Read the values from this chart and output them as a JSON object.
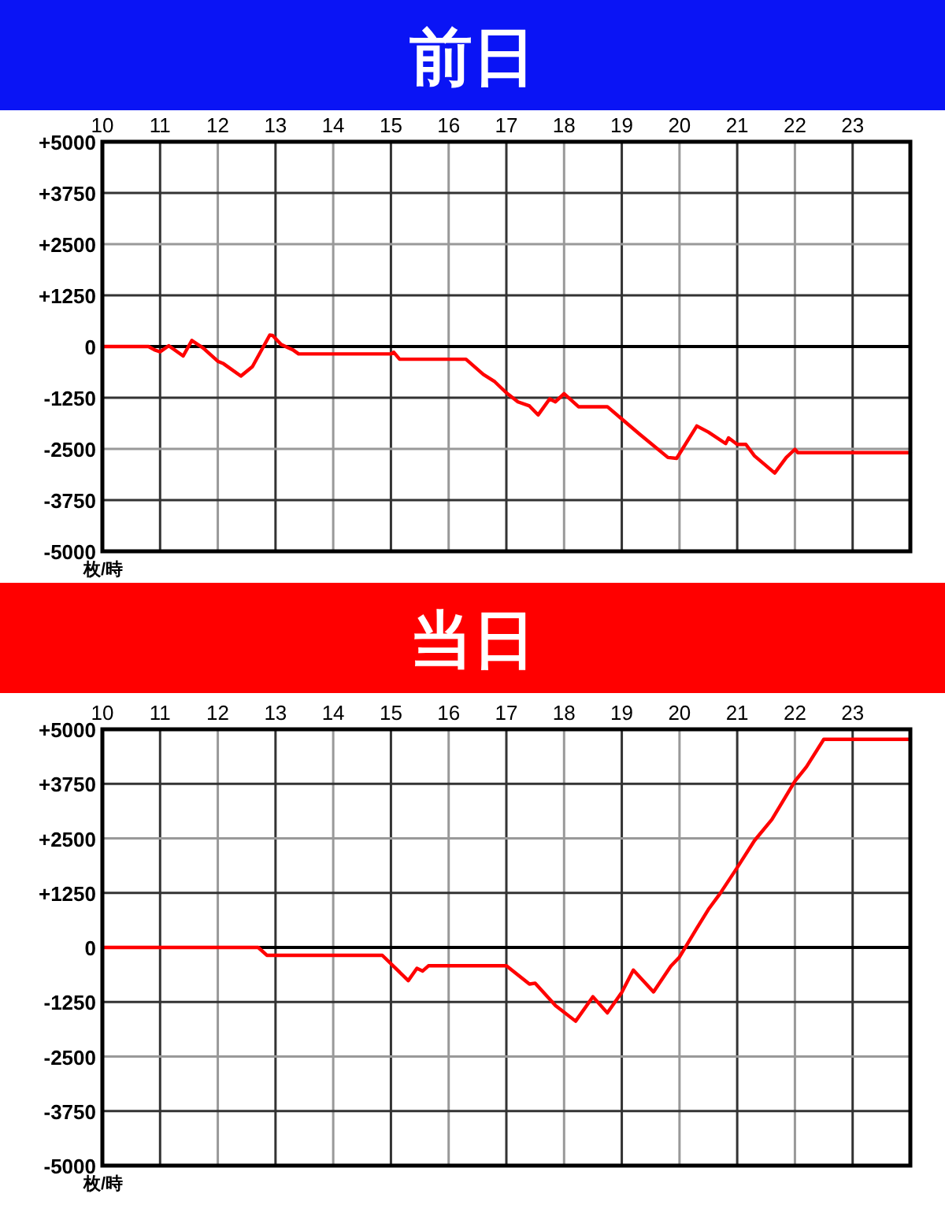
{
  "chart_data": [
    {
      "type": "line",
      "title": "前日",
      "ylabel": "枚/時",
      "xlim": [
        10,
        24
      ],
      "xticks": [
        10,
        11,
        12,
        13,
        14,
        15,
        16,
        17,
        18,
        19,
        20,
        21,
        22,
        23
      ],
      "ylim": [
        -5000,
        5000
      ],
      "yticks": [
        {
          "value": 5000,
          "label": "+5000"
        },
        {
          "value": 3750,
          "label": "+3750"
        },
        {
          "value": 2500,
          "label": "+2500"
        },
        {
          "value": 1250,
          "label": "+1250"
        },
        0,
        -1250,
        -2500,
        -3750,
        -5000
      ],
      "grid": true,
      "marker": "none",
      "line_style": "solid",
      "series": [
        {
          "color": "#ff0000",
          "x": [
            10,
            10.8,
            10.9,
            11.0,
            11.15,
            11.4,
            11.55,
            11.75,
            12.0,
            12.1,
            12.4,
            12.6,
            12.9,
            12.95,
            13.1,
            13.3,
            13.4,
            15.0,
            15.05,
            15.15,
            16.3,
            16.6,
            16.8,
            17.0,
            17.2,
            17.4,
            17.55,
            17.75,
            17.85,
            18.0,
            18.25,
            18.75,
            19.0,
            19.3,
            19.8,
            19.95,
            20.3,
            20.5,
            20.8,
            20.85,
            21.0,
            21.15,
            21.3,
            21.65,
            21.85,
            22.0,
            22.05,
            24
          ],
          "values": [
            0,
            0,
            -80,
            -130,
            20,
            -230,
            150,
            -40,
            -360,
            -420,
            -720,
            -490,
            280,
            270,
            50,
            -80,
            -180,
            -180,
            -140,
            -310,
            -310,
            -680,
            -860,
            -1130,
            -1350,
            -1450,
            -1670,
            -1280,
            -1350,
            -1150,
            -1470,
            -1470,
            -1770,
            -2130,
            -2710,
            -2730,
            -1940,
            -2090,
            -2370,
            -2230,
            -2390,
            -2390,
            -2670,
            -3090,
            -2710,
            -2510,
            -2590,
            -2590
          ]
        }
      ]
    },
    {
      "type": "line",
      "title": "当日",
      "ylabel": "枚/時",
      "xlim": [
        10,
        24
      ],
      "xticks": [
        10,
        11,
        12,
        13,
        14,
        15,
        16,
        17,
        18,
        19,
        20,
        21,
        22,
        23
      ],
      "ylim": [
        -5000,
        5000
      ],
      "yticks": [
        {
          "value": 5000,
          "label": "+5000"
        },
        {
          "value": 3750,
          "label": "+3750"
        },
        {
          "value": 2500,
          "label": "+2500"
        },
        {
          "value": 1250,
          "label": "+1250"
        },
        0,
        -1250,
        -2500,
        -3750,
        -5000
      ],
      "grid": true,
      "marker": "none",
      "line_style": "solid",
      "series": [
        {
          "color": "#ff0000",
          "x": [
            10,
            12.7,
            12.85,
            14.85,
            15.3,
            15.45,
            15.55,
            15.65,
            17.0,
            17.4,
            17.5,
            17.85,
            18.2,
            18.5,
            18.75,
            19.0,
            19.2,
            19.55,
            19.85,
            20.0,
            20.3,
            20.5,
            20.7,
            21.0,
            21.3,
            21.6,
            22.0,
            22.2,
            22.5,
            24
          ],
          "values": [
            0,
            0,
            -180,
            -180,
            -760,
            -480,
            -540,
            -420,
            -420,
            -840,
            -820,
            -1330,
            -1690,
            -1130,
            -1500,
            -1030,
            -520,
            -1020,
            -430,
            -220,
            440,
            870,
            1230,
            1830,
            2450,
            2930,
            3810,
            4140,
            4770,
            4770
          ]
        }
      ]
    }
  ]
}
